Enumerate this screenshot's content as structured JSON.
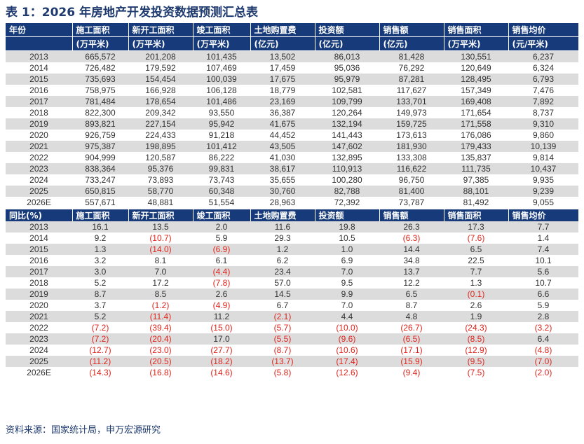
{
  "title": "表 1：2026 年房地产开发投资数据预测汇总表",
  "source": "资料来源：国家统计局，申万宏源研究",
  "table1": {
    "headers": [
      "年份",
      "施工面积",
      "新开工面积",
      "竣工面积",
      "土地购置费",
      "投资额",
      "销售额",
      "销售面积",
      "销售均价"
    ],
    "units": [
      "",
      "(万平米)",
      "(万平米)",
      "(万平米)",
      "(亿元)",
      "(亿元)",
      "(亿元)",
      "(万平米)",
      "(元/平米)"
    ],
    "rows": [
      [
        "2013",
        "665,572",
        "201,208",
        "101,435",
        "13,502",
        "86,013",
        "81,428",
        "130,551",
        "6,237"
      ],
      [
        "2014",
        "726,482",
        "179,592",
        "107,469",
        "17,459",
        "95,036",
        "76,292",
        "120,649",
        "6,324"
      ],
      [
        "2015",
        "735,693",
        "154,454",
        "100,039",
        "17,675",
        "95,979",
        "87,281",
        "128,495",
        "6,793"
      ],
      [
        "2016",
        "758,975",
        "166,928",
        "106,128",
        "18,779",
        "102,581",
        "117,627",
        "157,349",
        "7,476"
      ],
      [
        "2017",
        "781,484",
        "178,654",
        "101,486",
        "23,169",
        "109,799",
        "133,701",
        "169,408",
        "7,892"
      ],
      [
        "2018",
        "822,300",
        "209,342",
        "93,550",
        "36,387",
        "120,264",
        "149,973",
        "171,654",
        "8,737"
      ],
      [
        "2019",
        "893,821",
        "227,154",
        "95,942",
        "41,675",
        "132,194",
        "159,725",
        "171,558",
        "9,310"
      ],
      [
        "2020",
        "926,759",
        "224,433",
        "91,218",
        "44,452",
        "141,443",
        "173,613",
        "176,086",
        "9,860"
      ],
      [
        "2021",
        "975,387",
        "198,895",
        "101,412",
        "43,505",
        "147,602",
        "181,930",
        "179,433",
        "10,139"
      ],
      [
        "2022",
        "904,999",
        "120,587",
        "86,222",
        "41,030",
        "132,895",
        "133,308",
        "135,837",
        "9,814"
      ],
      [
        "2023",
        "838,364",
        "95,376",
        "99,831",
        "38,617",
        "110,913",
        "116,622",
        "111,735",
        "10,437"
      ],
      [
        "2024",
        "733,247",
        "73,893",
        "73,743",
        "35,655",
        "100,280",
        "96,750",
        "97,385",
        "9,935"
      ],
      [
        "2025",
        "650,815",
        "58,770",
        "60,348",
        "30,760",
        "82,788",
        "81,400",
        "88,101",
        "9,239"
      ],
      [
        "2026E",
        "557,671",
        "48,881",
        "51,554",
        "28,963",
        "72,392",
        "73,787",
        "81,492",
        "9,055"
      ]
    ]
  },
  "table2": {
    "headers": [
      "同比(%)",
      "施工面积",
      "新开工面积",
      "竣工面积",
      "土地购置费",
      "投资额",
      "销售额",
      "销售面积",
      "销售均价"
    ],
    "rows": [
      [
        "2013",
        "16.1",
        "13.5",
        "2.0",
        "11.6",
        "19.8",
        "26.3",
        "17.3",
        "7.7"
      ],
      [
        "2014",
        "9.2",
        "(10.7)",
        "5.9",
        "29.3",
        "10.5",
        "(6.3)",
        "(7.6)",
        "1.4"
      ],
      [
        "2015",
        "1.3",
        "(14.0)",
        "(6.9)",
        "1.2",
        "1.0",
        "14.4",
        "6.5",
        "7.4"
      ],
      [
        "2016",
        "3.2",
        "8.1",
        "6.1",
        "6.2",
        "6.9",
        "34.8",
        "22.5",
        "10.1"
      ],
      [
        "2017",
        "3.0",
        "7.0",
        "(4.4)",
        "23.4",
        "7.0",
        "13.7",
        "7.7",
        "5.6"
      ],
      [
        "2018",
        "5.2",
        "17.2",
        "(7.8)",
        "57.0",
        "9.5",
        "12.2",
        "1.3",
        "10.7"
      ],
      [
        "2019",
        "8.7",
        "8.5",
        "2.6",
        "14.5",
        "9.9",
        "6.5",
        "(0.1)",
        "6.6"
      ],
      [
        "2020",
        "3.7",
        "(1.2)",
        "(4.9)",
        "6.7",
        "7.0",
        "8.7",
        "2.6",
        "5.9"
      ],
      [
        "2021",
        "5.2",
        "(11.4)",
        "11.2",
        "(2.1)",
        "4.4",
        "4.8",
        "1.9",
        "2.8"
      ],
      [
        "2022",
        "(7.2)",
        "(39.4)",
        "(15.0)",
        "(5.7)",
        "(10.0)",
        "(26.7)",
        "(24.3)",
        "(3.2)"
      ],
      [
        "2023",
        "(7.2)",
        "(20.4)",
        "17.0",
        "(5.5)",
        "(9.6)",
        "(6.5)",
        "(8.5)",
        "6.4"
      ],
      [
        "2024",
        "(12.7)",
        "(23.0)",
        "(27.7)",
        "(8.7)",
        "(10.6)",
        "(17.1)",
        "(12.9)",
        "(4.8)"
      ],
      [
        "2025",
        "(11.2)",
        "(20.5)",
        "(18.2)",
        "(13.7)",
        "(17.4)",
        "(15.9)",
        "(9.5)",
        "(7.0)"
      ],
      [
        "2026E",
        "(14.3)",
        "(16.8)",
        "(14.6)",
        "(5.8)",
        "(12.6)",
        "(9.4)",
        "(7.5)",
        "(2.0)"
      ]
    ]
  },
  "colors": {
    "header_bg": "#163a7a",
    "stripe": "#dcdcdc",
    "negative": "#e0241c",
    "title": "#1f3a6e"
  }
}
